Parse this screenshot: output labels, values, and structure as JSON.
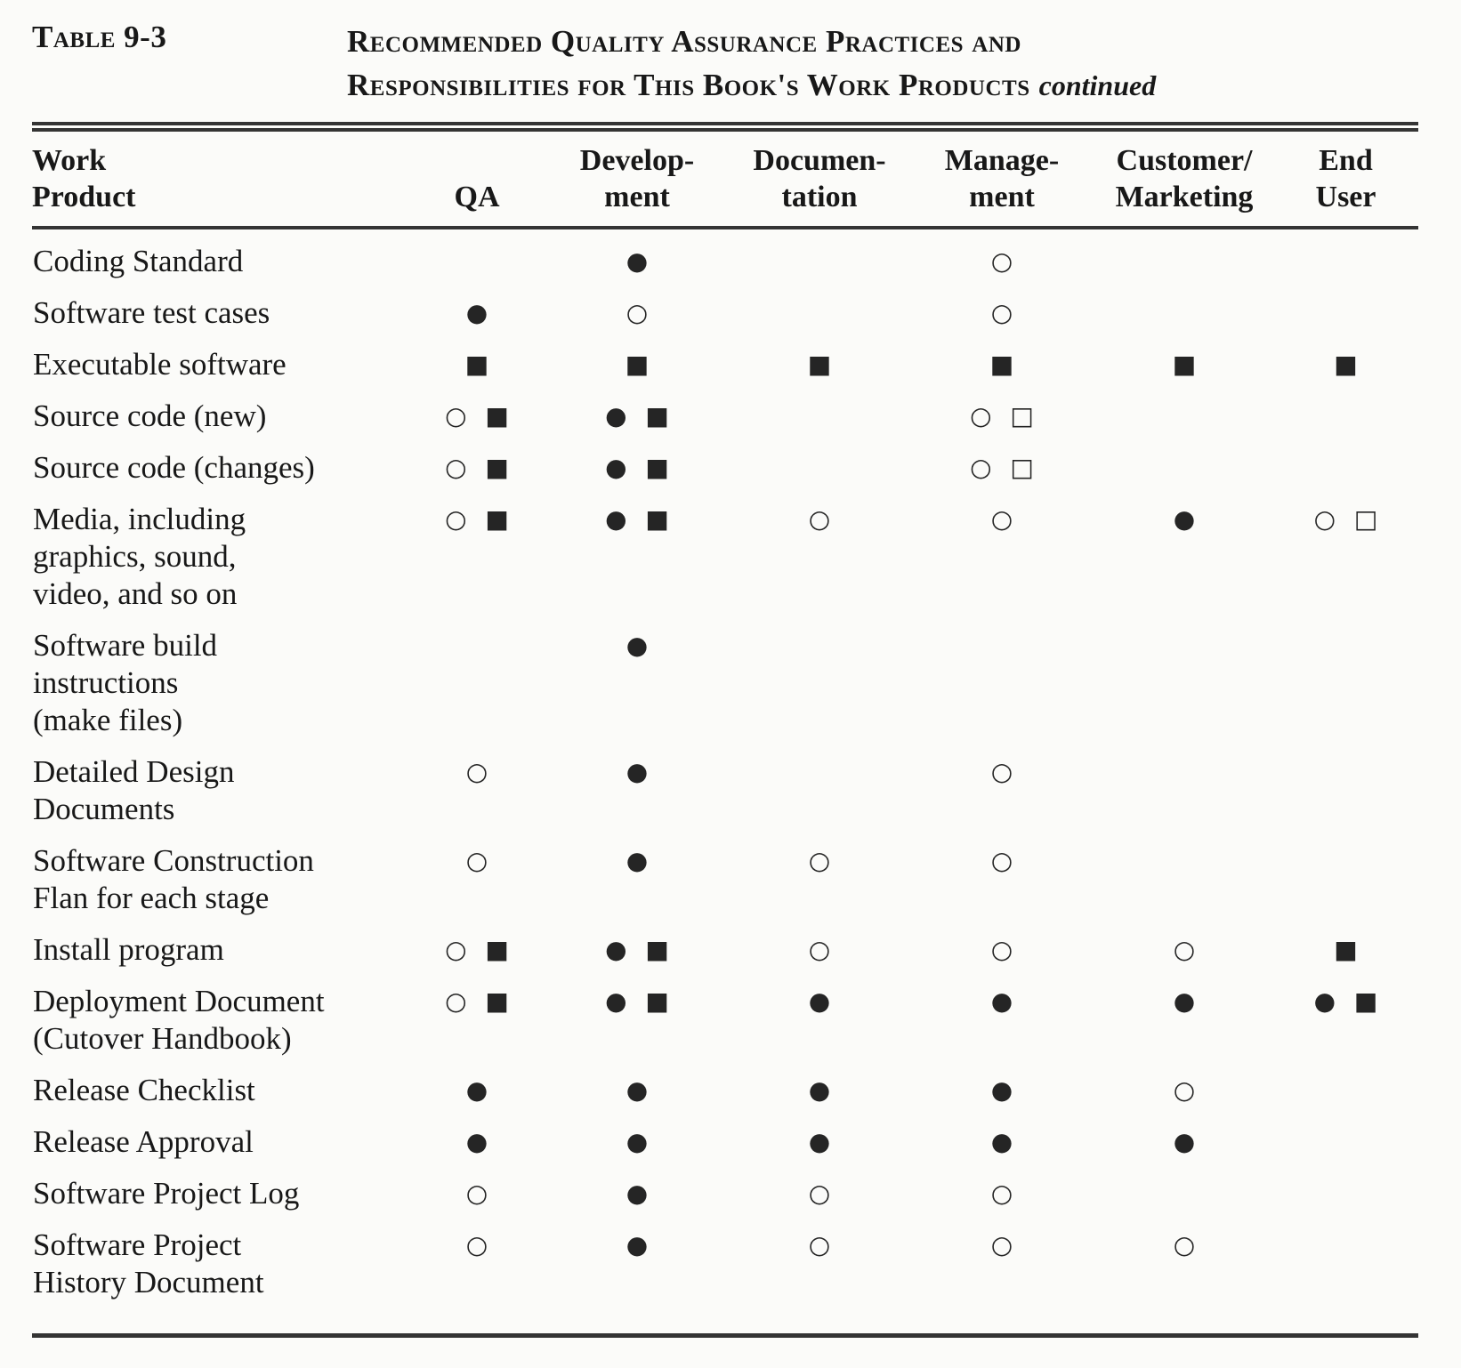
{
  "caption": {
    "label": "Table 9-3",
    "title_line1": "Recommended Quality Assurance Practices and",
    "title_line2": "Responsibilities for This Book's Work Products",
    "continued_note": "continued"
  },
  "table": {
    "columns": {
      "work_product": "Work\nProduct",
      "qa": "QA",
      "development": "Develop-\nment",
      "documentation": "Documen-\ntation",
      "management": "Manage-\nment",
      "customer_marketing": "Customer/\nMarketing",
      "end_user": "End\nUser"
    },
    "symbols_used": {
      "filled_circle": "●",
      "open_circle": "○",
      "filled_square": "■",
      "open_square": "□"
    },
    "rows": [
      {
        "product": "Coding Standard",
        "qa": "",
        "development": "●",
        "documentation": "",
        "management": "○",
        "customer_marketing": "",
        "end_user": ""
      },
      {
        "product": "Software test cases",
        "qa": "●",
        "development": "○",
        "documentation": "",
        "management": "○",
        "customer_marketing": "",
        "end_user": ""
      },
      {
        "product": "Executable software",
        "qa": "■",
        "development": "■",
        "documentation": "■",
        "management": "■",
        "customer_marketing": "■",
        "end_user": "■"
      },
      {
        "product": "Source code (new)",
        "qa": "○ ■",
        "development": "● ■",
        "documentation": "",
        "management": "○ □",
        "customer_marketing": "",
        "end_user": ""
      },
      {
        "product": "Source code (changes)",
        "qa": "○ ■",
        "development": "● ■",
        "documentation": "",
        "management": "○ □",
        "customer_marketing": "",
        "end_user": ""
      },
      {
        "product": "Media, including\ngraphics, sound,\nvideo, and so on",
        "qa": "○ ■",
        "development": "● ■",
        "documentation": "○",
        "management": "○",
        "customer_marketing": "●",
        "end_user": "○ □"
      },
      {
        "product": "Software build\ninstructions\n(make files)",
        "qa": "",
        "development": "●",
        "documentation": "",
        "management": "",
        "customer_marketing": "",
        "end_user": ""
      },
      {
        "product": "Detailed Design\nDocuments",
        "qa": "○",
        "development": "●",
        "documentation": "",
        "management": "○",
        "customer_marketing": "",
        "end_user": ""
      },
      {
        "product": "Software Construction\nFlan for each stage",
        "qa": "○",
        "development": "●",
        "documentation": "○",
        "management": "○",
        "customer_marketing": "",
        "end_user": ""
      },
      {
        "product": "Install program",
        "qa": "○ ■",
        "development": "● ■",
        "documentation": "○",
        "management": "○",
        "customer_marketing": "○",
        "end_user": "■"
      },
      {
        "product": "Deployment Document\n(Cutover Handbook)",
        "qa": "○ ■",
        "development": "● ■",
        "documentation": "●",
        "management": "●",
        "customer_marketing": "●",
        "end_user": "● ■"
      },
      {
        "product": "Release Checklist",
        "qa": "●",
        "development": "●",
        "documentation": "●",
        "management": "●",
        "customer_marketing": "○",
        "end_user": ""
      },
      {
        "product": "Release Approval",
        "qa": "●",
        "development": "●",
        "documentation": "●",
        "management": "●",
        "customer_marketing": "●",
        "end_user": ""
      },
      {
        "product": "Software Project Log",
        "qa": "○",
        "development": "●",
        "documentation": "○",
        "management": "○",
        "customer_marketing": "",
        "end_user": ""
      },
      {
        "product": "Software Project\nHistory Document",
        "qa": "○",
        "development": "●",
        "documentation": "○",
        "management": "○",
        "customer_marketing": "○",
        "end_user": ""
      }
    ]
  }
}
